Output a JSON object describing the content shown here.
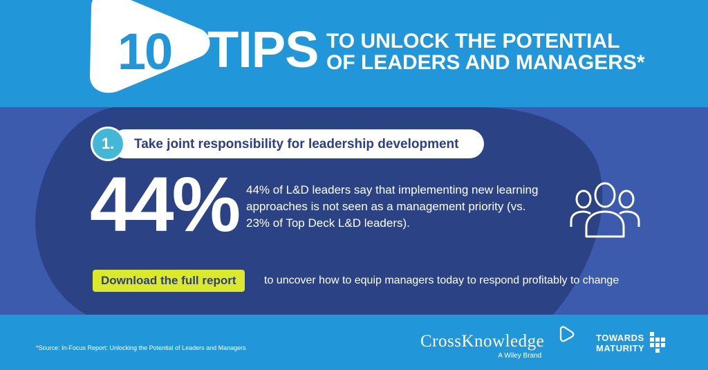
{
  "header": {
    "number": "10",
    "word": "TIPS",
    "subtitle_line1": "TO UNLOCK THE POTENTIAL",
    "subtitle_line2": "OF LEADERS AND MANAGERS*"
  },
  "tip": {
    "number": "1.",
    "title": "Take joint responsibility for leadership development",
    "stat": "44%",
    "description": "44% of L&D leaders say that implementing new learning approaches is not seen as a management priority (vs. 23% of Top Deck L&D leaders).",
    "icon": "people-group-icon"
  },
  "cta": {
    "button_label": "Download the full report",
    "text": "to uncover how to equip managers today to respond profitably to change"
  },
  "footer": {
    "source": "*Source: In-Focus Report: Unlocking the Potential of Leaders and Managers",
    "crossknowledge_name": "CrossKnowledge",
    "crossknowledge_tagline": "A Wiley Brand",
    "towards_maturity_line1": "TOWARDS",
    "towards_maturity_line2": "MATURITY"
  },
  "colors": {
    "header_blue": "#2196d8",
    "mid_blue": "#3c5bac",
    "blob_navy": "#2b4384",
    "accent_yellow": "#dce92a",
    "accent_cyan": "#42b8d6"
  }
}
